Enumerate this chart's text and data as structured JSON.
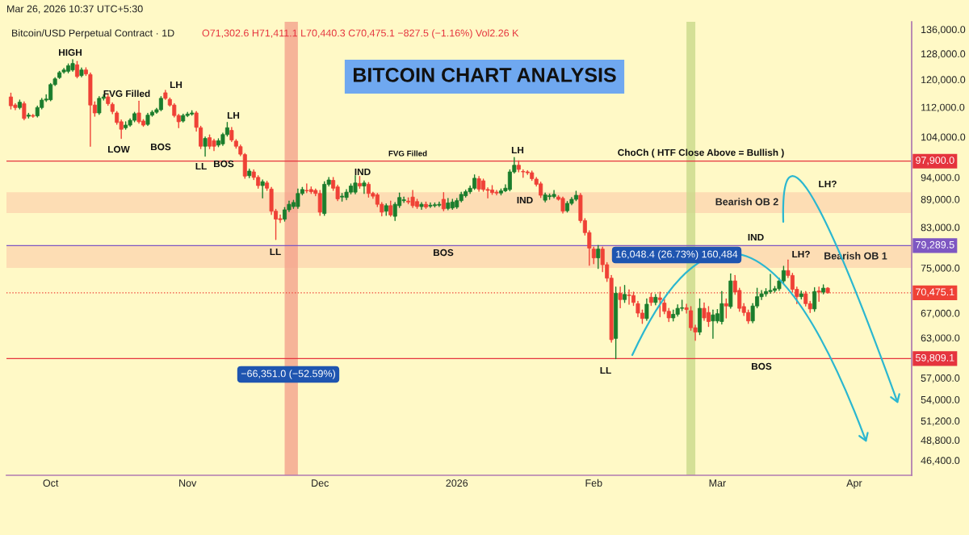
{
  "chart_data": {
    "type": "candlestick",
    "title": "BITCOIN CHART ANALYSIS",
    "subtitle": "Bitcoin/USD Perpetual Contract · 1D",
    "log": true,
    "x": [
      "2025-09-22",
      "2025-09-23",
      "2025-09-24",
      "2025-09-25",
      "2025-09-26",
      "2025-09-27",
      "2025-09-28",
      "2025-09-29",
      "2025-09-30",
      "2025-10-01",
      "2025-10-02",
      "2025-10-03",
      "2025-10-04",
      "2025-10-05",
      "2025-10-06",
      "2025-10-07",
      "2025-10-08",
      "2025-10-09",
      "2025-10-10",
      "2025-10-11",
      "2025-10-12",
      "2025-10-13",
      "2025-10-14",
      "2025-10-15",
      "2025-10-16",
      "2025-10-17",
      "2025-10-18",
      "2025-10-19",
      "2025-10-20",
      "2025-10-21",
      "2025-10-22",
      "2025-10-23",
      "2025-10-24",
      "2025-10-25",
      "2025-10-26",
      "2025-10-27",
      "2025-10-28",
      "2025-10-29",
      "2025-10-30",
      "2025-10-31",
      "2025-11-01",
      "2025-11-02",
      "2025-11-03",
      "2025-11-04",
      "2025-11-05",
      "2025-11-06",
      "2025-11-07",
      "2025-11-08",
      "2025-11-09",
      "2025-11-10",
      "2025-11-11",
      "2025-11-12",
      "2025-11-13",
      "2025-11-14",
      "2025-11-15",
      "2025-11-16",
      "2025-11-17",
      "2025-11-18",
      "2025-11-19",
      "2025-11-20",
      "2025-11-21",
      "2025-11-22",
      "2025-11-23",
      "2025-11-24",
      "2025-11-25",
      "2025-11-26",
      "2025-11-27",
      "2025-11-28",
      "2025-11-29",
      "2025-11-30",
      "2025-12-01",
      "2025-12-02",
      "2025-12-03",
      "2025-12-04",
      "2025-12-05",
      "2025-12-06",
      "2025-12-07",
      "2025-12-08",
      "2025-12-09",
      "2025-12-10",
      "2025-12-11",
      "2025-12-12",
      "2025-12-13",
      "2025-12-14",
      "2025-12-15",
      "2025-12-16",
      "2025-12-17",
      "2025-12-18",
      "2025-12-19",
      "2025-12-20",
      "2025-12-21",
      "2025-12-22",
      "2025-12-23",
      "2025-12-24",
      "2025-12-25",
      "2025-12-26",
      "2025-12-27",
      "2025-12-28",
      "2025-12-29",
      "2025-12-30",
      "2025-12-31",
      "2026-01-01",
      "2026-01-02",
      "2026-01-03",
      "2026-01-04",
      "2026-01-05",
      "2026-01-06",
      "2026-01-07",
      "2026-01-08",
      "2026-01-09",
      "2026-01-10",
      "2026-01-11",
      "2026-01-12",
      "2026-01-13",
      "2026-01-14",
      "2026-01-15",
      "2026-01-16",
      "2026-01-17",
      "2026-01-18",
      "2026-01-19",
      "2026-01-20",
      "2026-01-21",
      "2026-01-22",
      "2026-01-23",
      "2026-01-24",
      "2026-01-25",
      "2026-01-26",
      "2026-01-27",
      "2026-01-28",
      "2026-01-29",
      "2026-01-30",
      "2026-01-31",
      "2026-02-01",
      "2026-02-02",
      "2026-02-03",
      "2026-02-04",
      "2026-02-05",
      "2026-02-06",
      "2026-02-07",
      "2026-02-08",
      "2026-02-09",
      "2026-02-10",
      "2026-02-11",
      "2026-02-12",
      "2026-02-13",
      "2026-02-14",
      "2026-02-15",
      "2026-02-16",
      "2026-02-17",
      "2026-02-18",
      "2026-02-19",
      "2026-02-20",
      "2026-02-21",
      "2026-02-22",
      "2026-02-23",
      "2026-02-24",
      "2026-02-25",
      "2026-02-26",
      "2026-02-27",
      "2026-02-28",
      "2026-03-01",
      "2026-03-02",
      "2026-03-03",
      "2026-03-04",
      "2026-03-05",
      "2026-03-06",
      "2026-03-07",
      "2026-03-08",
      "2026-03-09",
      "2026-03-10",
      "2026-03-11",
      "2026-03-12",
      "2026-03-13",
      "2026-03-14",
      "2026-03-15",
      "2026-03-16",
      "2026-03-17",
      "2026-03-18",
      "2026-03-19",
      "2026-03-20",
      "2026-03-21",
      "2026-03-22",
      "2026-03-23",
      "2026-03-24",
      "2026-03-25",
      "2026-03-26"
    ],
    "ohlc": [
      [
        114900,
        116000,
        111500,
        112400
      ],
      [
        112600,
        113000,
        111300,
        111900
      ],
      [
        111900,
        114000,
        111500,
        113400
      ],
      [
        113000,
        113500,
        108500,
        108900
      ],
      [
        109500,
        110300,
        109000,
        109800
      ],
      [
        109700,
        110000,
        109200,
        109500
      ],
      [
        109600,
        112300,
        109300,
        111900
      ],
      [
        111900,
        114500,
        111500,
        114000
      ],
      [
        114000,
        115500,
        113600,
        114300
      ],
      [
        114100,
        118800,
        113800,
        118500
      ],
      [
        118500,
        120600,
        118200,
        120200
      ],
      [
        120600,
        122500,
        120300,
        122100
      ],
      [
        122300,
        123400,
        121900,
        122900
      ],
      [
        122500,
        124800,
        122000,
        124200
      ],
      [
        122900,
        126100,
        122500,
        124900
      ],
      [
        124500,
        125500,
        120500,
        120900
      ],
      [
        121200,
        123500,
        120800,
        122900
      ],
      [
        122900,
        123600,
        121200,
        121700
      ],
      [
        121500,
        122000,
        101600,
        112600
      ],
      [
        112600,
        113500,
        109500,
        110400
      ],
      [
        110400,
        115000,
        110000,
        114500
      ],
      [
        114500,
        115500,
        114000,
        114900
      ],
      [
        114900,
        115500,
        112500,
        113000
      ],
      [
        112800,
        113200,
        110200,
        110800
      ],
      [
        110400,
        110800,
        107300,
        107800
      ],
      [
        108000,
        108500,
        103600,
        106000
      ],
      [
        106400,
        108000,
        106000,
        107100
      ],
      [
        107100,
        108800,
        106800,
        108400
      ],
      [
        108400,
        110600,
        108000,
        110200
      ],
      [
        110400,
        113700,
        107600,
        108000
      ],
      [
        108200,
        108600,
        106800,
        107100
      ],
      [
        107300,
        110300,
        107000,
        109800
      ],
      [
        109800,
        111000,
        109500,
        110600
      ],
      [
        110600,
        111700,
        110300,
        111300
      ],
      [
        111300,
        115000,
        111000,
        114500
      ],
      [
        116100,
        116800,
        114200,
        114500
      ],
      [
        114200,
        114600,
        112300,
        112600
      ],
      [
        112600,
        113000,
        109300,
        109700
      ],
      [
        109700,
        110000,
        106400,
        108000
      ],
      [
        108200,
        110100,
        107900,
        109700
      ],
      [
        109700,
        110600,
        109400,
        110100
      ],
      [
        110100,
        111000,
        109800,
        110400
      ],
      [
        110400,
        110800,
        105500,
        106500
      ],
      [
        106400,
        106800,
        101000,
        101600
      ],
      [
        101600,
        104000,
        99100,
        103600
      ],
      [
        103800,
        104500,
        101000,
        101600
      ],
      [
        103000,
        103400,
        100500,
        101600
      ],
      [
        101900,
        103500,
        101500,
        103000
      ],
      [
        102200,
        105000,
        101800,
        104600
      ],
      [
        104600,
        107800,
        104200,
        106400
      ],
      [
        105700,
        106500,
        102800,
        103200
      ],
      [
        102900,
        103300,
        101100,
        101600
      ],
      [
        101500,
        101900,
        99200,
        99600
      ],
      [
        99500,
        99800,
        93800,
        94300
      ],
      [
        94400,
        96000,
        93900,
        95500
      ],
      [
        95300,
        95800,
        93500,
        94000
      ],
      [
        94000,
        94400,
        91500,
        92100
      ],
      [
        92100,
        93400,
        89300,
        93000
      ],
      [
        92700,
        93100,
        91000,
        91500
      ],
      [
        91300,
        91700,
        85700,
        86400
      ],
      [
        86400,
        86800,
        80500,
        84700
      ],
      [
        84800,
        85600,
        84000,
        84600
      ],
      [
        84700,
        87200,
        84300,
        86700
      ],
      [
        86700,
        88600,
        86300,
        87900
      ],
      [
        87400,
        88800,
        87000,
        88300
      ],
      [
        87400,
        91300,
        87000,
        90300
      ],
      [
        90300,
        91700,
        90000,
        91200
      ],
      [
        91000,
        92500,
        90500,
        90900
      ],
      [
        91200,
        91800,
        90300,
        90700
      ],
      [
        91000,
        91300,
        89800,
        90300
      ],
      [
        90300,
        91000,
        85500,
        86200
      ],
      [
        85900,
        93000,
        85500,
        92400
      ],
      [
        92400,
        94000,
        92000,
        93400
      ],
      [
        93300,
        94000,
        91000,
        91500
      ],
      [
        91800,
        92200,
        88700,
        89100
      ],
      [
        89500,
        90300,
        88600,
        89700
      ],
      [
        89400,
        91200,
        88900,
        90600
      ],
      [
        90600,
        92500,
        90200,
        92000
      ],
      [
        90600,
        94400,
        90200,
        92700
      ],
      [
        92600,
        94200,
        91500,
        92000
      ],
      [
        92000,
        93200,
        90300,
        92700
      ],
      [
        92400,
        92800,
        89500,
        90300
      ],
      [
        90300,
        90600,
        89200,
        89700
      ],
      [
        90000,
        90300,
        87400,
        87900
      ],
      [
        87900,
        88300,
        85400,
        86200
      ],
      [
        86400,
        88000,
        85500,
        87600
      ],
      [
        87600,
        88600,
        85300,
        85600
      ],
      [
        85300,
        88300,
        84400,
        87900
      ],
      [
        87600,
        90400,
        87200,
        89400
      ],
      [
        88700,
        89500,
        88300,
        88900
      ],
      [
        88600,
        89300,
        88000,
        88400
      ],
      [
        89500,
        91000,
        87200,
        87600
      ],
      [
        88500,
        89000,
        87000,
        87400
      ],
      [
        87400,
        88300,
        86800,
        87900
      ],
      [
        87900,
        88400,
        87000,
        87300
      ],
      [
        87500,
        88200,
        87200,
        87700
      ],
      [
        87600,
        88200,
        87300,
        87800
      ],
      [
        87700,
        88400,
        87400,
        87900
      ],
      [
        89000,
        90500,
        86500,
        86900
      ],
      [
        87000,
        89200,
        86700,
        88200
      ],
      [
        87100,
        89000,
        86800,
        88400
      ],
      [
        87300,
        89200,
        87000,
        88700
      ],
      [
        88700,
        90600,
        88400,
        90100
      ],
      [
        89800,
        91100,
        89500,
        90700
      ],
      [
        90700,
        92000,
        90300,
        91500
      ],
      [
        91500,
        94600,
        91200,
        93800
      ],
      [
        93700,
        94200,
        90800,
        91300
      ],
      [
        93200,
        93600,
        90800,
        91200
      ],
      [
        91200,
        91600,
        89300,
        91000
      ],
      [
        91100,
        92100,
        90100,
        90500
      ],
      [
        90600,
        91000,
        90000,
        90400
      ],
      [
        90400,
        91300,
        90000,
        90900
      ],
      [
        90900,
        92300,
        90700,
        91500
      ],
      [
        91200,
        95800,
        90900,
        95300
      ],
      [
        95300,
        98800,
        95000,
        96900
      ],
      [
        96900,
        98000,
        95300,
        95900
      ],
      [
        95400,
        95800,
        94000,
        95300
      ],
      [
        95300,
        95600,
        94700,
        95100
      ],
      [
        95100,
        95500,
        93300,
        93700
      ],
      [
        93600,
        94000,
        92000,
        92400
      ],
      [
        92500,
        92900,
        89400,
        89900
      ],
      [
        88800,
        90400,
        88400,
        90000
      ],
      [
        89600,
        90200,
        89000,
        89800
      ],
      [
        89600,
        91000,
        89300,
        90100
      ],
      [
        89500,
        89800,
        88800,
        89000
      ],
      [
        89200,
        89500,
        86000,
        86400
      ],
      [
        86500,
        88500,
        86200,
        88100
      ],
      [
        88100,
        89400,
        87800,
        89000
      ],
      [
        89000,
        90800,
        88700,
        89900
      ],
      [
        89900,
        90300,
        84000,
        84400
      ],
      [
        84400,
        84800,
        81400,
        81900
      ],
      [
        81900,
        82300,
        75500,
        78800
      ],
      [
        78600,
        79000,
        75800,
        76900
      ],
      [
        76900,
        79300,
        74900,
        78600
      ],
      [
        78600,
        79000,
        74300,
        75600
      ],
      [
        75600,
        76000,
        72500,
        73100
      ],
      [
        73100,
        73600,
        62300,
        62700
      ],
      [
        62900,
        71500,
        59800,
        70400
      ],
      [
        70400,
        71500,
        67900,
        69300
      ],
      [
        69300,
        71800,
        68800,
        70200
      ],
      [
        70100,
        71000,
        68500,
        70000
      ],
      [
        70000,
        70600,
        68300,
        68800
      ],
      [
        68600,
        69000,
        66400,
        67000
      ],
      [
        67000,
        67500,
        65300,
        66100
      ],
      [
        66100,
        69400,
        65800,
        68500
      ],
      [
        69700,
        70400,
        68300,
        68800
      ],
      [
        68800,
        70200,
        68400,
        69700
      ],
      [
        69600,
        70600,
        66400,
        69300
      ],
      [
        68700,
        69300,
        66900,
        67300
      ],
      [
        67300,
        67800,
        65600,
        66200
      ],
      [
        66200,
        67500,
        65700,
        66800
      ],
      [
        66800,
        68400,
        66500,
        67800
      ],
      [
        67800,
        69200,
        67400,
        67900
      ],
      [
        67900,
        68500,
        67000,
        67600
      ],
      [
        67400,
        68100,
        64200,
        64600
      ],
      [
        64600,
        65000,
        62600,
        63900
      ],
      [
        63900,
        69400,
        63500,
        67800
      ],
      [
        67800,
        68700,
        65800,
        66200
      ],
      [
        67100,
        68100,
        64800,
        65600
      ],
      [
        65700,
        67500,
        62900,
        66700
      ],
      [
        65700,
        67600,
        65400,
        66900
      ],
      [
        65600,
        70700,
        65200,
        68600
      ],
      [
        68600,
        69400,
        66200,
        68200
      ],
      [
        68100,
        73900,
        67800,
        72600
      ],
      [
        72600,
        73600,
        70200,
        70600
      ],
      [
        70900,
        71300,
        67300,
        67800
      ],
      [
        68100,
        68600,
        66600,
        67100
      ],
      [
        67100,
        67500,
        65300,
        65700
      ],
      [
        65700,
        68600,
        65400,
        68200
      ],
      [
        68200,
        71300,
        67900,
        69800
      ],
      [
        69800,
        70900,
        69300,
        70300
      ],
      [
        70300,
        71200,
        69900,
        70700
      ],
      [
        70700,
        73800,
        70400,
        70900
      ],
      [
        70900,
        71600,
        70600,
        71200
      ],
      [
        71200,
        73100,
        70900,
        72600
      ],
      [
        72600,
        75300,
        72200,
        74500
      ],
      [
        74500,
        76500,
        73200,
        73600
      ],
      [
        73600,
        74000,
        70600,
        71100
      ],
      [
        71100,
        71500,
        68600,
        69800
      ],
      [
        69800,
        70800,
        69400,
        70300
      ],
      [
        70300,
        70700,
        68200,
        68600
      ],
      [
        68600,
        69000,
        67100,
        67700
      ],
      [
        67700,
        71400,
        67300,
        70700
      ],
      [
        70800,
        71500,
        69000,
        70600
      ],
      [
        70600,
        71900,
        70300,
        71300
      ],
      [
        71302.6,
        71411.1,
        70440.3,
        70475.1
      ]
    ],
    "colors": [
      "#ef4136",
      "#ef4136",
      "#1b7d2c",
      "#ef4136",
      "#1b7d2c",
      "#ef4136",
      "#1b7d2c",
      "#1b7d2c",
      "#1b7d2c",
      "#1b7d2c",
      "#1b7d2c",
      "#1b7d2c",
      "#1b7d2c",
      "#1b7d2c",
      "#1b7d2c",
      "#ef4136",
      "#1b7d2c",
      "#ef4136",
      "#ef4136",
      "#ef4136",
      "#1b7d2c",
      "#1b7d2c",
      "#ef4136",
      "#ef4136",
      "#ef4136",
      "#ef4136",
      "#1b7d2c",
      "#1b7d2c",
      "#1b7d2c",
      "#ef4136",
      "#ef4136",
      "#1b7d2c",
      "#1b7d2c",
      "#1b7d2c",
      "#1b7d2c",
      "#ef4136",
      "#ef4136",
      "#ef4136",
      "#ef4136",
      "#1b7d2c",
      "#1b7d2c",
      "#1b7d2c",
      "#ef4136",
      "#ef4136",
      "#1b7d2c",
      "#ef4136",
      "#ef4136",
      "#1b7d2c",
      "#1b7d2c",
      "#1b7d2c",
      "#ef4136",
      "#ef4136",
      "#ef4136",
      "#ef4136",
      "#1b7d2c",
      "#ef4136",
      "#ef4136",
      "#1b7d2c",
      "#ef4136",
      "#ef4136",
      "#ef4136",
      "#ef4136",
      "#1b7d2c",
      "#1b7d2c",
      "#1b7d2c",
      "#1b7d2c",
      "#1b7d2c",
      "#ef4136",
      "#ef4136",
      "#ef4136",
      "#ef4136",
      "#1b7d2c",
      "#1b7d2c",
      "#ef4136",
      "#ef4136",
      "#1b7d2c",
      "#1b7d2c",
      "#1b7d2c",
      "#1b7d2c",
      "#ef4136",
      "#1b7d2c",
      "#ef4136",
      "#ef4136",
      "#ef4136",
      "#ef4136",
      "#1b7d2c",
      "#ef4136",
      "#1b7d2c",
      "#1b7d2c",
      "#1b7d2c",
      "#ef4136",
      "#ef4136",
      "#ef4136",
      "#1b7d2c",
      "#ef4136",
      "#1b7d2c",
      "#1b7d2c",
      "#1b7d2c",
      "#ef4136",
      "#1b7d2c",
      "#1b7d2c",
      "#1b7d2c",
      "#1b7d2c",
      "#1b7d2c",
      "#1b7d2c",
      "#1b7d2c",
      "#ef4136",
      "#ef4136",
      "#ef4136",
      "#ef4136",
      "#ef4136",
      "#1b7d2c",
      "#1b7d2c",
      "#1b7d2c",
      "#1b7d2c",
      "#ef4136",
      "#ef4136",
      "#ef4136",
      "#ef4136",
      "#ef4136",
      "#ef4136",
      "#1b7d2c",
      "#1b7d2c",
      "#1b7d2c",
      "#ef4136",
      "#ef4136",
      "#1b7d2c",
      "#1b7d2c",
      "#1b7d2c",
      "#ef4136",
      "#ef4136",
      "#ef4136",
      "#ef4136",
      "#1b7d2c",
      "#ef4136",
      "#ef4136",
      "#ef4136",
      "#1b7d2c",
      "#ef4136",
      "#1b7d2c",
      "#ef4136",
      "#ef4136",
      "#ef4136",
      "#ef4136",
      "#1b7d2c",
      "#ef4136",
      "#1b7d2c",
      "#ef4136",
      "#ef4136",
      "#ef4136",
      "#1b7d2c",
      "#1b7d2c",
      "#1b7d2c",
      "#ef4136",
      "#ef4136",
      "#ef4136",
      "#1b7d2c",
      "#ef4136",
      "#ef4136",
      "#1b7d2c",
      "#1b7d2c",
      "#1b7d2c",
      "#ef4136",
      "#1b7d2c",
      "#ef4136",
      "#ef4136",
      "#ef4136",
      "#ef4136",
      "#1b7d2c",
      "#1b7d2c",
      "#1b7d2c",
      "#1b7d2c",
      "#1b7d2c",
      "#1b7d2c",
      "#1b7d2c",
      "#1b7d2c",
      "#ef4136",
      "#ef4136",
      "#ef4136",
      "#1b7d2c",
      "#ef4136",
      "#ef4136",
      "#1b7d2c",
      "#ef4136",
      "#1b7d2c",
      "#ef4136"
    ],
    "xlim": [
      "2025-09-21",
      "2026-04-14"
    ],
    "xticks": [
      {
        "value": "2025-10-01",
        "label": "Oct"
      },
      {
        "value": "2025-11-01",
        "label": "Nov"
      },
      {
        "value": "2025-12-01",
        "label": "Dec"
      },
      {
        "value": "2026-01-01",
        "label": "2026"
      },
      {
        "value": "2026-02-01",
        "label": "Feb"
      },
      {
        "value": "2026-03-01",
        "label": "Mar"
      },
      {
        "value": "2026-04-01",
        "label": "Apr"
      }
    ],
    "ylim": [
      44700,
      138600
    ],
    "yticks": [
      {
        "value": 136000,
        "label": "136,000.0"
      },
      {
        "value": 128000,
        "label": "128,000.0"
      },
      {
        "value": 120000,
        "label": "120,000.0"
      },
      {
        "value": 112000,
        "label": "112,000.0"
      },
      {
        "value": 104000,
        "label": "104,000.0"
      },
      {
        "value": 94000,
        "label": "94,000.0"
      },
      {
        "value": 89000,
        "label": "89,000.0"
      },
      {
        "value": 83000,
        "label": "83,000.0"
      },
      {
        "value": 75000,
        "label": "75,000.0"
      },
      {
        "value": 67000,
        "label": "67,000.0"
      },
      {
        "value": 63000,
        "label": "63,000.0"
      },
      {
        "value": 57000,
        "label": "57,000.0"
      },
      {
        "value": 54000,
        "label": "54,000.0"
      },
      {
        "value": 51200,
        "label": "51,200.0"
      },
      {
        "value": 48800,
        "label": "48,800.0"
      },
      {
        "value": 46400,
        "label": "46,400.0"
      }
    ],
    "ref_lines": [
      {
        "axis": "y",
        "value": 97900,
        "label": "97,900.0",
        "color": "#e5343e"
      },
      {
        "axis": "y",
        "value": 79289.5,
        "label": "79,289.5",
        "color": "#7e57c2"
      },
      {
        "axis": "y",
        "value": 70475.1,
        "label": "70,475.1",
        "color": "#ef4136",
        "line_style": "dotted"
      },
      {
        "axis": "y",
        "value": 59809.1,
        "label": "59,809.1",
        "color": "#e5343e"
      }
    ],
    "bands": [
      {
        "axis": "y",
        "from": 86000,
        "to": 90600,
        "label": "Bearish OB 2",
        "color": "#fbc9a8"
      },
      {
        "axis": "y",
        "from": 75000,
        "to": 79289.5,
        "label": "Bearish OB 1",
        "color": "#fbc9a8"
      },
      {
        "axis": "x",
        "from": "2025-11-23",
        "to": "2025-11-26",
        "color": "#f4a38c"
      },
      {
        "axis": "x",
        "from": "2026-02-22",
        "to": "2026-02-24",
        "color": "#c9d98a"
      }
    ],
    "annotations": [
      "Mar 26, 2026 10:37 UTC+5:30",
      "O71,302.6 H71,411.1 L70,440.3 C70,475.1 −827.5 (−1.16%) Vol2.26 K",
      "HIGH",
      "FVG Filled",
      "LH",
      "LOW",
      "BOS",
      "LH",
      "LL",
      "BOS",
      "LL",
      "FVG Filled",
      "IND",
      "BOS",
      "LH",
      "IND",
      "ChoCh ( HTF Close Above = Bullish )",
      "LH?",
      "IND",
      "16,048.4 (26.73%) 160,484",
      "LH?",
      "BOS",
      "LL",
      "−66,351.0 (−52.59%)"
    ]
  }
}
